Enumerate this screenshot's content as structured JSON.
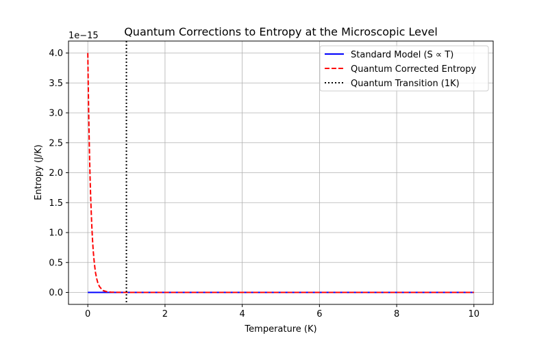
{
  "chart_data": {
    "type": "line",
    "title": "Quantum Corrections to Entropy at the Microscopic Level",
    "xlabel": "Temperature (K)",
    "ylabel": "Entropy (J/K)",
    "y_offset_label": "1e−15",
    "xlim": [
      -0.5,
      10.5
    ],
    "ylim": [
      -0.2,
      4.2
    ],
    "y_scale_exponent": -15,
    "x_ticks": [
      0,
      2,
      4,
      6,
      8,
      10
    ],
    "x_tick_labels": [
      "0",
      "2",
      "4",
      "6",
      "8",
      "10"
    ],
    "y_ticks": [
      0.0,
      0.5,
      1.0,
      1.5,
      2.0,
      2.5,
      3.0,
      3.5,
      4.0
    ],
    "y_tick_labels": [
      "0.0",
      "0.5",
      "1.0",
      "1.5",
      "2.0",
      "2.5",
      "3.0",
      "3.5",
      "4.0"
    ],
    "grid": true,
    "legend_location": "top-right",
    "series": [
      {
        "name": "Standard Model (S ∝ T)",
        "color": "#0000ff",
        "style": "solid",
        "x": [
          0.0,
          1.0,
          2.0,
          3.0,
          4.0,
          5.0,
          6.0,
          7.0,
          8.0,
          9.0,
          10.0
        ],
        "values": [
          0,
          0,
          0,
          0,
          0,
          0,
          0,
          0,
          0,
          0,
          0
        ]
      },
      {
        "name": "Quantum Corrected Entropy",
        "color": "#ff0000",
        "style": "dashed",
        "x": [
          0.0,
          0.01,
          0.02,
          0.03,
          0.04,
          0.05,
          0.06,
          0.07,
          0.08,
          0.1,
          0.12,
          0.14,
          0.16,
          0.18,
          0.2,
          0.23,
          0.26,
          0.3,
          0.35,
          0.4,
          0.5,
          0.6,
          0.8,
          1.0,
          2.0,
          4.0,
          6.0,
          8.0,
          10.0
        ],
        "values": [
          4.0,
          3.53,
          3.12,
          2.76,
          2.44,
          2.15,
          1.9,
          1.68,
          1.49,
          1.16,
          0.9,
          0.7,
          0.55,
          0.43,
          0.33,
          0.23,
          0.16,
          0.1,
          0.06,
          0.03,
          0.01,
          0.004,
          0.001,
          0,
          0,
          0,
          0,
          0,
          0
        ]
      },
      {
        "name": "Quantum Transition (1K)",
        "color": "#000000",
        "style": "dotted",
        "orientation": "vertical",
        "x_value": 1.0
      }
    ]
  }
}
